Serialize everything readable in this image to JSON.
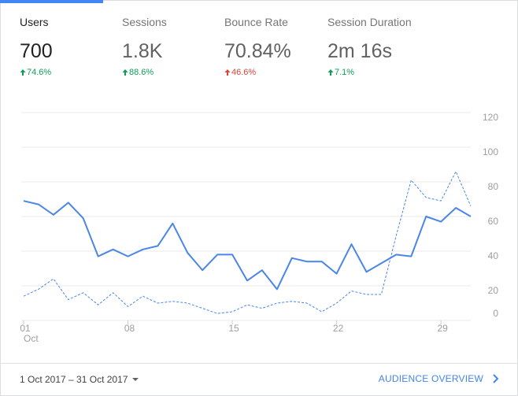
{
  "metrics": [
    {
      "label": "Users",
      "value": "700",
      "change": "74.6%",
      "trend": "up",
      "color": "#0f9d58",
      "selected": true
    },
    {
      "label": "Sessions",
      "value": "1.8K",
      "change": "88.6%",
      "trend": "up",
      "color": "#0f9d58",
      "selected": false
    },
    {
      "label": "Bounce Rate",
      "value": "70.84%",
      "change": "46.6%",
      "trend": "up",
      "color": "#db4437",
      "selected": false
    },
    {
      "label": "Session Duration",
      "value": "2m 16s",
      "change": "7.1%",
      "trend": "up",
      "color": "#0f9d58",
      "selected": false
    }
  ],
  "chart_data": {
    "type": "line",
    "categories": [
      "01",
      null,
      null,
      null,
      null,
      null,
      null,
      "08",
      null,
      null,
      null,
      null,
      null,
      null,
      "15",
      null,
      null,
      null,
      null,
      null,
      null,
      "22",
      null,
      null,
      null,
      null,
      null,
      null,
      "29",
      null,
      null
    ],
    "month_label": "Oct",
    "series": [
      {
        "color": "#4a86e8",
        "style": "solid",
        "values": [
          69,
          67,
          61,
          68,
          59,
          37,
          41,
          37,
          41,
          43,
          56,
          39,
          29,
          38,
          38,
          23,
          29,
          18,
          36,
          34,
          34,
          27,
          44,
          28,
          33,
          38,
          37,
          60,
          57,
          65,
          60
        ]
      },
      {
        "color": "#4a86e8",
        "style": "dashed",
        "values": [
          14,
          18,
          24,
          12,
          16,
          9,
          16,
          8,
          14,
          10,
          11,
          10,
          7,
          4,
          5,
          9,
          7,
          10,
          11,
          10,
          5,
          10,
          17,
          15,
          15,
          49,
          81,
          71,
          69,
          86,
          66
        ]
      }
    ],
    "ylim": [
      0,
      120
    ],
    "yticks": [
      0,
      20,
      40,
      60,
      80,
      100,
      120
    ],
    "grid": true
  },
  "footer": {
    "date_range": "1 Oct 2017 – 31 Oct 2017",
    "link": "AUDIENCE OVERVIEW"
  }
}
